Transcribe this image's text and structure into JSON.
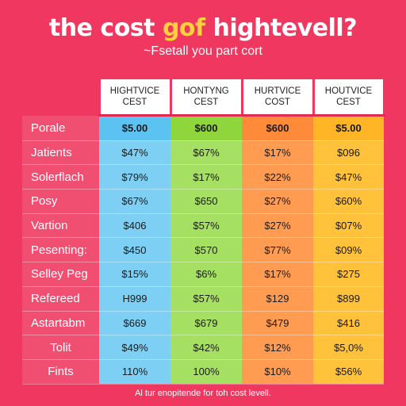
{
  "title": {
    "part1": "the cost ",
    "part2": "gof",
    "part3": " hightevell?"
  },
  "subtitle": "~Fsetall you part cort",
  "columns": [
    {
      "line1": "HIGHTVICE",
      "line2": "CEST"
    },
    {
      "line1": "HONTYNG",
      "line2": "CEST"
    },
    {
      "line1": "HURTVICE",
      "line2": "COST"
    },
    {
      "line1": "HOUTVICE",
      "line2": "CEST"
    }
  ],
  "rows": [
    {
      "label": "Porale",
      "values": [
        "$5.00",
        "$600",
        "$600",
        "$5.00"
      ]
    },
    {
      "label": "Jatients",
      "values": [
        "$47%",
        "$67%",
        "$17%",
        "$096"
      ]
    },
    {
      "label": "Solerflach",
      "values": [
        "$79%",
        "$17%",
        "$22%",
        "$47%"
      ]
    },
    {
      "label": "Posy",
      "values": [
        "$67%",
        "$650",
        "$27%",
        "$60%"
      ]
    },
    {
      "label": "Vartion",
      "values": [
        "$406",
        "$57%",
        "$27%",
        "$07%"
      ]
    },
    {
      "label": "Pesenting:",
      "values": [
        "$450",
        "$570",
        "$77%",
        "$09%"
      ]
    },
    {
      "label": "Selley Peg",
      "values": [
        "$15%",
        "$6%",
        "$17%",
        "$275"
      ]
    },
    {
      "label": "Refereed",
      "values": [
        "H999",
        "$57%",
        "$129",
        "$899"
      ]
    },
    {
      "label": "Astartabm",
      "values": [
        "$669",
        "$679",
        "$479",
        "$416"
      ]
    },
    {
      "label": "Tolit",
      "values": [
        "$49%",
        "$42%",
        "$12%",
        "$5,0%"
      ]
    },
    {
      "label": "Fints",
      "values": [
        "110%",
        "100%",
        "$10%",
        "$56%"
      ]
    }
  ],
  "footer": "Al tur enopitende for toh cost levell.",
  "colors": {
    "background": "#f0375f",
    "col1": "#7dd0f4",
    "col2": "#a6e062",
    "col3": "#ff9c52",
    "col4": "#ffc23a",
    "title_accent": "#ffd23c"
  }
}
